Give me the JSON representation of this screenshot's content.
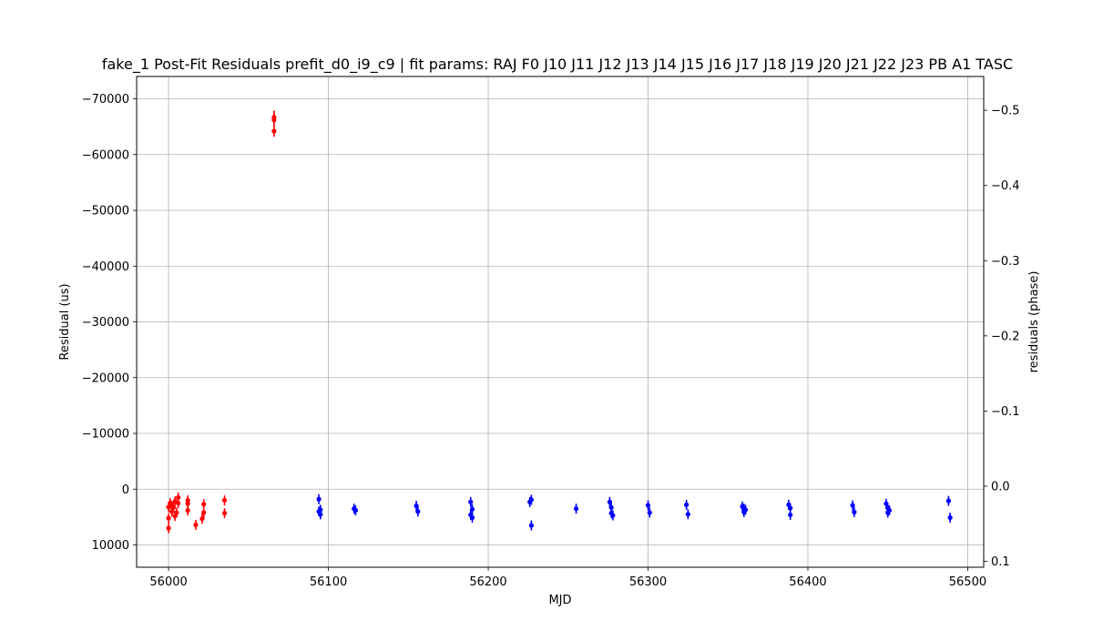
{
  "chart_data": {
    "type": "scatter",
    "title": "fake_1 Post-Fit Residuals prefit_d0_i9_c9 | fit params: RAJ F0 J10 J11 J12 J13 J14 J15 J16 J17 J18 J19 J20 J21 J22 J23 PB A1 TASC",
    "xlabel": "MJD",
    "ylabel": "Residual (us)",
    "y2label": "residuals (phase)",
    "xlim": [
      55980,
      56510
    ],
    "ylim": [
      14000,
      -74000
    ],
    "y2lim": [
      0.1078,
      -0.545
    ],
    "y_inverted": true,
    "grid": true,
    "legend": "none",
    "x_ticks": [
      56000,
      56100,
      56200,
      56300,
      56400,
      56500
    ],
    "x_tick_labels": [
      "56000",
      "56100",
      "56200",
      "56300",
      "56400",
      "56500"
    ],
    "y_ticks": [
      10000,
      0,
      -10000,
      -20000,
      -30000,
      -40000,
      -50000,
      -60000,
      -70000
    ],
    "y_tick_labels": [
      "10000",
      "0",
      "−10000",
      "−20000",
      "−30000",
      "−40000",
      "−50000",
      "−60000",
      "−70000"
    ],
    "y2_ticks": [
      0.1,
      0.0,
      -0.1,
      -0.2,
      -0.3,
      -0.4,
      -0.5
    ],
    "y2_tick_labels": [
      "0.1",
      "0.0",
      "−0.1",
      "−0.2",
      "−0.3",
      "−0.4",
      "−0.5"
    ],
    "series": [
      {
        "color": "#ff0000",
        "points": [
          {
            "x": 56000,
            "y": 7000,
            "err": 900
          },
          {
            "x": 56000,
            "y": 5200,
            "err": 900
          },
          {
            "x": 56000,
            "y": 3200,
            "err": 900
          },
          {
            "x": 56001,
            "y": 2500,
            "err": 900
          },
          {
            "x": 56002,
            "y": 4000,
            "err": 900
          },
          {
            "x": 56002,
            "y": 3000,
            "err": 900
          },
          {
            "x": 56003,
            "y": 3300,
            "err": 900
          },
          {
            "x": 56004,
            "y": 2200,
            "err": 900
          },
          {
            "x": 56004,
            "y": 4800,
            "err": 900
          },
          {
            "x": 56005,
            "y": 4200,
            "err": 900
          },
          {
            "x": 56006,
            "y": 1500,
            "err": 900
          },
          {
            "x": 56006,
            "y": 2500,
            "err": 900
          },
          {
            "x": 56012,
            "y": 2000,
            "err": 900
          },
          {
            "x": 56012,
            "y": 3800,
            "err": 900
          },
          {
            "x": 56012,
            "y": 2600,
            "err": 900
          },
          {
            "x": 56017,
            "y": 6400,
            "err": 900
          },
          {
            "x": 56021,
            "y": 5300,
            "err": 900
          },
          {
            "x": 56022,
            "y": 4200,
            "err": 900
          },
          {
            "x": 56022,
            "y": 2700,
            "err": 900
          },
          {
            "x": 56035,
            "y": 4300,
            "err": 900
          },
          {
            "x": 56035,
            "y": 2000,
            "err": 900
          },
          {
            "x": 56066,
            "y": -66700,
            "err": 1200
          },
          {
            "x": 56066,
            "y": -66200,
            "err": 1200
          },
          {
            "x": 56066,
            "y": -64200,
            "err": 1000
          }
        ]
      },
      {
        "color": "#0000ff",
        "points": [
          {
            "x": 56094,
            "y": 1800,
            "err": 900
          },
          {
            "x": 56094,
            "y": 4000,
            "err": 900
          },
          {
            "x": 56095,
            "y": 4500,
            "err": 900
          },
          {
            "x": 56095,
            "y": 3700,
            "err": 900
          },
          {
            "x": 56116,
            "y": 3500,
            "err": 900
          },
          {
            "x": 56117,
            "y": 3800,
            "err": 900
          },
          {
            "x": 56155,
            "y": 3000,
            "err": 900
          },
          {
            "x": 56156,
            "y": 4000,
            "err": 900
          },
          {
            "x": 56189,
            "y": 2300,
            "err": 900
          },
          {
            "x": 56189,
            "y": 4600,
            "err": 900
          },
          {
            "x": 56190,
            "y": 5100,
            "err": 900
          },
          {
            "x": 56190,
            "y": 3600,
            "err": 900
          },
          {
            "x": 56226,
            "y": 2300,
            "err": 900
          },
          {
            "x": 56227,
            "y": 1900,
            "err": 900
          },
          {
            "x": 56227,
            "y": 6500,
            "err": 900
          },
          {
            "x": 56255,
            "y": 3500,
            "err": 900
          },
          {
            "x": 56276,
            "y": 2300,
            "err": 900
          },
          {
            "x": 56277,
            "y": 3300,
            "err": 900
          },
          {
            "x": 56277,
            "y": 4300,
            "err": 900
          },
          {
            "x": 56278,
            "y": 4700,
            "err": 900
          },
          {
            "x": 56300,
            "y": 2900,
            "err": 900
          },
          {
            "x": 56301,
            "y": 4200,
            "err": 900
          },
          {
            "x": 56324,
            "y": 2800,
            "err": 900
          },
          {
            "x": 56325,
            "y": 4500,
            "err": 900
          },
          {
            "x": 56359,
            "y": 3100,
            "err": 900
          },
          {
            "x": 56360,
            "y": 3500,
            "err": 900
          },
          {
            "x": 56360,
            "y": 4100,
            "err": 900
          },
          {
            "x": 56361,
            "y": 3700,
            "err": 900
          },
          {
            "x": 56388,
            "y": 2800,
            "err": 900
          },
          {
            "x": 56389,
            "y": 3400,
            "err": 900
          },
          {
            "x": 56389,
            "y": 4600,
            "err": 900
          },
          {
            "x": 56428,
            "y": 2900,
            "err": 900
          },
          {
            "x": 56429,
            "y": 4100,
            "err": 900
          },
          {
            "x": 56449,
            "y": 2600,
            "err": 900
          },
          {
            "x": 56450,
            "y": 3400,
            "err": 900
          },
          {
            "x": 56450,
            "y": 4200,
            "err": 900
          },
          {
            "x": 56451,
            "y": 3800,
            "err": 900
          },
          {
            "x": 56488,
            "y": 2100,
            "err": 900
          },
          {
            "x": 56489,
            "y": 5100,
            "err": 900
          }
        ]
      }
    ]
  }
}
